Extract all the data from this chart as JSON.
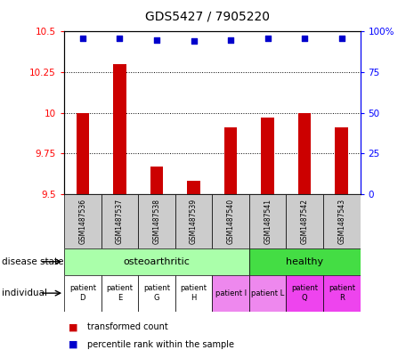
{
  "title": "GDS5427 / 7905220",
  "samples": [
    "GSM1487536",
    "GSM1487537",
    "GSM1487538",
    "GSM1487539",
    "GSM1487540",
    "GSM1487541",
    "GSM1487542",
    "GSM1487543"
  ],
  "transformed_count": [
    10.0,
    10.3,
    9.67,
    9.58,
    9.91,
    9.97,
    10.0,
    9.91
  ],
  "percentile_rank": [
    96,
    96,
    95,
    94,
    95,
    96,
    96,
    96
  ],
  "ylim": [
    9.5,
    10.5
  ],
  "yticks_left": [
    9.5,
    9.75,
    10.0,
    10.25,
    10.5
  ],
  "ytick_labels_left": [
    "9.5",
    "9.75",
    "10",
    "10.25",
    "10.5"
  ],
  "right_yticks": [
    0,
    25,
    50,
    75,
    100
  ],
  "right_yticklabels": [
    "0",
    "25",
    "50",
    "75",
    "100%"
  ],
  "bar_color": "#cc0000",
  "dot_color": "#0000cc",
  "disease_color_osteo": "#aaffaa",
  "disease_color_healthy": "#44dd44",
  "individual_colors": [
    "#ffffff",
    "#ffffff",
    "#ffffff",
    "#ffffff",
    "#ee88ee",
    "#ee88ee",
    "#ee44ee",
    "#ee44ee"
  ],
  "ind_label_top": [
    "patient",
    "patient",
    "patient",
    "patient",
    "patient I",
    "patient L",
    "patient",
    "patient"
  ],
  "ind_label_bot": [
    "D",
    "E",
    "G",
    "H",
    "",
    "",
    "Q",
    "R"
  ],
  "bg_color_samples": "#cccccc"
}
